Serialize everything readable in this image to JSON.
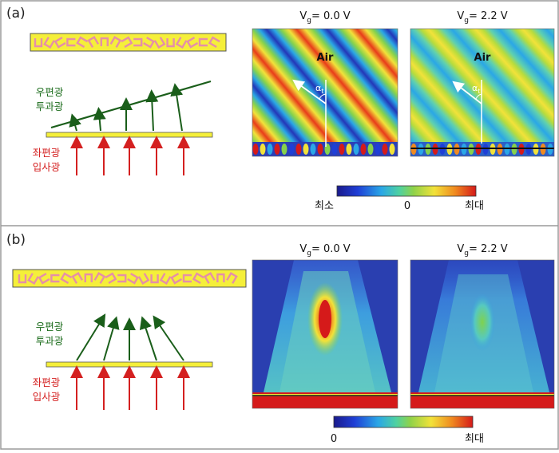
{
  "panels": [
    {
      "label": "(a)",
      "meta_labels": [
        "우편광",
        "투과광"
      ],
      "meta_label_color": "#1a6b1a",
      "incident_labels": [
        "좌편광",
        "입사광"
      ],
      "incident_label_color": "#d42020",
      "maps": [
        {
          "v_prefix": "V",
          "v_sub": "g",
          "v_value": "= 0.0  V",
          "region_label": "Air",
          "angle_symbol": "α",
          "angle_sub": "t"
        },
        {
          "v_prefix": "V",
          "v_sub": "g",
          "v_value": "= 2.2  V",
          "region_label": "Air",
          "angle_symbol": "α",
          "angle_sub": "t"
        }
      ],
      "colorbar": {
        "min_label": "최소",
        "mid_label": "0",
        "max_label": "최대"
      }
    },
    {
      "label": "(b)",
      "meta_labels": [
        "우편광",
        "투과광"
      ],
      "meta_label_color": "#1a6b1a",
      "incident_labels": [
        "좌편광",
        "입사광"
      ],
      "incident_label_color": "#d42020",
      "maps": [
        {
          "v_prefix": "V",
          "v_sub": "g",
          "v_value": "= 0.0  V"
        },
        {
          "v_prefix": "V",
          "v_sub": "g",
          "v_value": "= 2.2  V"
        }
      ],
      "colorbar": {
        "min_label": "0",
        "max_label": "최대"
      }
    }
  ],
  "colors": {
    "metasurface_yellow": "#f5ef3a",
    "arrow_red": "#d42020",
    "arrow_green": "#1a5e1a",
    "antenna_pink": "#e58fa8"
  }
}
